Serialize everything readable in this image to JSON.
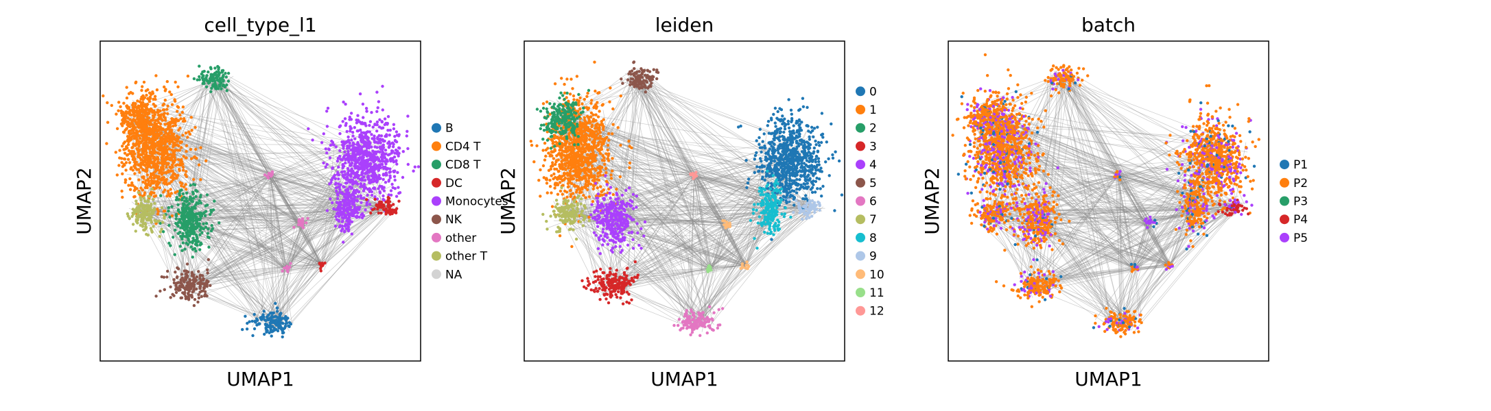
{
  "chart_data": [
    {
      "type": "scatter",
      "title": "cell_type_l1",
      "xlabel": "UMAP1",
      "ylabel": "UMAP2",
      "xticks": [],
      "yticks": [],
      "grid": false,
      "legend_placement": "right",
      "legend": [
        {
          "label": "B",
          "color": "#1f77b4"
        },
        {
          "label": "CD4 T",
          "color": "#ff7f0e"
        },
        {
          "label": "CD8 T",
          "color": "#279e68"
        },
        {
          "label": "DC",
          "color": "#d62728"
        },
        {
          "label": "Monocytes",
          "color": "#aa40fc"
        },
        {
          "label": "NK",
          "color": "#8c564b"
        },
        {
          "label": "other",
          "color": "#e377c2"
        },
        {
          "label": "other T",
          "color": "#b5bd61"
        },
        {
          "label": "NA",
          "color": "#d3d3d3"
        }
      ]
    },
    {
      "type": "scatter",
      "title": "leiden",
      "xlabel": "UMAP1",
      "ylabel": "UMAP2",
      "xticks": [],
      "yticks": [],
      "grid": false,
      "legend_placement": "right",
      "legend": [
        {
          "label": "0",
          "color": "#1f77b4"
        },
        {
          "label": "1",
          "color": "#ff7f0e"
        },
        {
          "label": "2",
          "color": "#279e68"
        },
        {
          "label": "3",
          "color": "#d62728"
        },
        {
          "label": "4",
          "color": "#aa40fc"
        },
        {
          "label": "5",
          "color": "#8c564b"
        },
        {
          "label": "6",
          "color": "#e377c2"
        },
        {
          "label": "7",
          "color": "#b5bd61"
        },
        {
          "label": "8",
          "color": "#17becf"
        },
        {
          "label": "9",
          "color": "#aec7e8"
        },
        {
          "label": "10",
          "color": "#ffbb78"
        },
        {
          "label": "11",
          "color": "#98df8a"
        },
        {
          "label": "12",
          "color": "#ff9896"
        }
      ]
    },
    {
      "type": "scatter",
      "title": "batch",
      "xlabel": "UMAP1",
      "ylabel": "UMAP2",
      "xticks": [],
      "yticks": [],
      "grid": false,
      "legend_placement": "right",
      "legend": [
        {
          "label": "P1",
          "color": "#1f77b4"
        },
        {
          "label": "P2",
          "color": "#ff7f0e"
        },
        {
          "label": "P3",
          "color": "#279e68"
        },
        {
          "label": "P4",
          "color": "#d62728"
        },
        {
          "label": "P5",
          "color": "#aa40fc"
        }
      ]
    }
  ]
}
